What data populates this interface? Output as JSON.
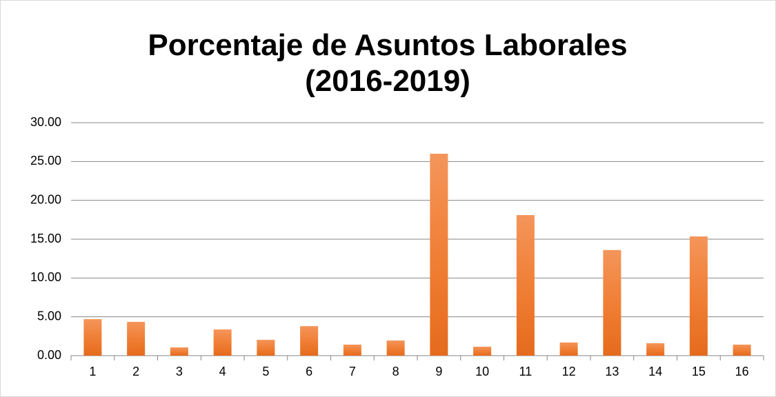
{
  "chart_data": {
    "type": "bar",
    "title": "Porcentaje de Asuntos Laborales (2016-2019)",
    "categories": [
      "1",
      "2",
      "3",
      "4",
      "5",
      "6",
      "7",
      "8",
      "9",
      "10",
      "11",
      "12",
      "13",
      "14",
      "15",
      "16"
    ],
    "values": [
      4.7,
      4.35,
      1.06,
      3.37,
      2.04,
      3.8,
      1.42,
      1.95,
      26.0,
      1.15,
      18.1,
      1.7,
      13.6,
      1.6,
      15.35,
      1.42
    ],
    "color": "#ed7d31",
    "ylim": [
      0,
      30
    ],
    "yticks": [
      {
        "value": 0,
        "label": "0.00"
      },
      {
        "value": 5,
        "label": "5.00"
      },
      {
        "value": 10,
        "label": "10.00"
      },
      {
        "value": 15,
        "label": "15.00"
      },
      {
        "value": 20,
        "label": "20.00"
      },
      {
        "value": 25,
        "label": "25.00"
      },
      {
        "value": 30,
        "label": "30.00"
      }
    ],
    "grid": true
  }
}
